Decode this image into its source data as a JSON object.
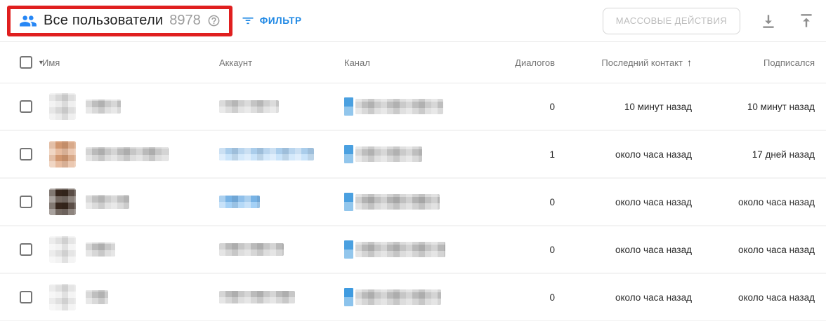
{
  "toolbar": {
    "title": "Все пользователи",
    "count": "8978",
    "filter_label": "ФИЛЬТР",
    "bulk_actions_label": "МАССОВЫЕ ДЕЙСТВИЯ"
  },
  "icons": {
    "users_icon": "people",
    "help_icon": "question-circle",
    "filter_icon": "filter-list",
    "download_icon": "download",
    "upload_icon": "upload",
    "caret_glyph": "▼",
    "sort_arrow_glyph": "↑"
  },
  "colors": {
    "accent_blue": "#1d87e4",
    "icon_blue": "#2787f5",
    "annotation_red": "#e01f1f",
    "muted_gray": "#757575",
    "disabled_gray": "#bdbdbd"
  },
  "table": {
    "columns": {
      "name": "Имя",
      "account": "Аккаунт",
      "channel": "Канал",
      "dialogs": "Диалогов",
      "last_contact": "Последний контакт",
      "subscribed": "Подписался"
    },
    "sorted_column": "last_contact",
    "rows": [
      {
        "dialogs": "0",
        "last_contact": "10 минут назад",
        "subscribed": "10 минут назад",
        "redacted": {
          "avatar": "#e3e3e3",
          "name_w": 50,
          "name_c": "#c9c9c9",
          "acct_w": 85,
          "acct_c": "#cfcfcf",
          "chan_icon": "#4aa0e0",
          "chan_w": 125,
          "chan_c": "#c9c9c9"
        }
      },
      {
        "dialogs": "1",
        "last_contact": "около часа назад",
        "subscribed": "17 дней назад",
        "redacted": {
          "avatar": "#dda077",
          "name_w": 118,
          "name_c": "#c4c4c4",
          "acct_w": 135,
          "acct_c": "#b4d8f8",
          "chan_icon": "#4aa0e0",
          "chan_w": 95,
          "chan_c": "#c9c9c9"
        }
      },
      {
        "dialogs": "0",
        "last_contact": "около часа назад",
        "subscribed": "около часа назад",
        "redacted": {
          "avatar": "#39291f",
          "name_w": 62,
          "name_c": "#cccccc",
          "acct_w": 58,
          "acct_c": "#7fbdf2",
          "chan_icon": "#4aa0e0",
          "chan_w": 120,
          "chan_c": "#bdbdbd"
        }
      },
      {
        "dialogs": "0",
        "last_contact": "около часа назад",
        "subscribed": "около часа назад",
        "redacted": {
          "avatar": "#ececec",
          "name_w": 42,
          "name_c": "#c6c6c6",
          "acct_w": 92,
          "acct_c": "#c4c4c4",
          "chan_icon": "#4aa0e0",
          "chan_w": 128,
          "chan_c": "#c2c2c2"
        }
      },
      {
        "dialogs": "0",
        "last_contact": "около часа назад",
        "subscribed": "около часа назад",
        "redacted": {
          "avatar": "#ececec",
          "name_w": 32,
          "name_c": "#cacaca",
          "acct_w": 108,
          "acct_c": "#c6c6c6",
          "chan_icon": "#3f9be0",
          "chan_w": 122,
          "chan_c": "#c4c4c4"
        }
      }
    ]
  }
}
